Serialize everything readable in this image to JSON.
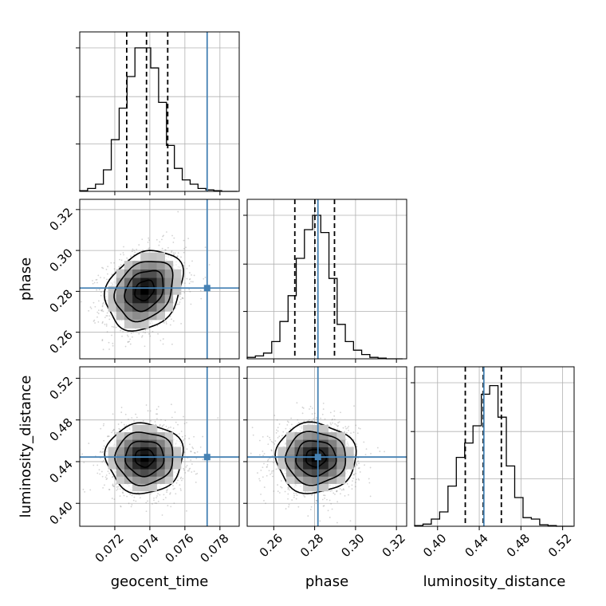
{
  "chart_data": {
    "type": "corner",
    "parameters": [
      "geocent_time",
      "phase",
      "luminosity_distance"
    ],
    "axis_labels": {
      "geocent_time": "geocent_time",
      "phase": "phase",
      "luminosity_distance": "luminosity_distance"
    },
    "ranges": {
      "geocent_time": [
        0.07,
        0.0791
      ],
      "phase": [
        0.247,
        0.325
      ],
      "luminosity_distance": [
        0.378,
        0.531
      ]
    },
    "ticks": {
      "geocent_time": [
        0.072,
        0.074,
        0.076,
        0.078
      ],
      "phase": [
        0.26,
        0.28,
        0.3,
        0.32
      ],
      "luminosity_distance": [
        0.4,
        0.44,
        0.48,
        0.52
      ]
    },
    "tick_labels": {
      "geocent_time": [
        "0.072",
        "0.074",
        "0.076",
        "0.078"
      ],
      "phase": [
        "0.26",
        "0.28",
        "0.30",
        "0.32"
      ],
      "luminosity_distance": [
        "0.40",
        "0.44",
        "0.48",
        "0.52"
      ]
    },
    "truths": {
      "geocent_time": 0.07727,
      "phase": 0.2816,
      "luminosity_distance": 0.4444
    },
    "posterior_medians": {
      "geocent_time": 0.07381,
      "phase": 0.2801,
      "luminosity_distance": 0.4438
    },
    "quantiles_16_84": {
      "geocent_time": [
        0.07268,
        0.07502
      ],
      "phase": [
        0.2703,
        0.2897
      ],
      "luminosity_distance": [
        0.4266,
        0.4612
      ]
    },
    "histograms": {
      "geocent_time": {
        "bin_edges": [
          0.07,
          0.07045,
          0.0709,
          0.07135,
          0.0718,
          0.07225,
          0.0727,
          0.07315,
          0.0736,
          0.07405,
          0.0745,
          0.07495,
          0.0754,
          0.07585,
          0.0763,
          0.07675,
          0.0772,
          0.07765,
          0.0781,
          0.07855,
          0.079
        ],
        "counts": [
          0.5,
          2,
          5,
          15,
          36,
          58,
          80,
          100,
          100,
          86,
          62,
          32,
          16,
          8,
          5,
          2,
          1,
          0.5,
          0,
          0
        ]
      },
      "phase": {
        "bin_edges": [
          0.247,
          0.251,
          0.255,
          0.259,
          0.263,
          0.267,
          0.271,
          0.275,
          0.279,
          0.283,
          0.287,
          0.291,
          0.295,
          0.299,
          0.303,
          0.307,
          0.311,
          0.315,
          0.319,
          0.323
        ],
        "counts": [
          1,
          2,
          4,
          12,
          26,
          44,
          70,
          90,
          100,
          88,
          56,
          24,
          12,
          6,
          3,
          1,
          0.5,
          0,
          0
        ]
      },
      "luminosity_distance": {
        "bin_edges": [
          0.378,
          0.386,
          0.394,
          0.402,
          0.41,
          0.418,
          0.426,
          0.434,
          0.442,
          0.45,
          0.458,
          0.466,
          0.474,
          0.482,
          0.49,
          0.498,
          0.506,
          0.514,
          0.522,
          0.53
        ],
        "counts": [
          0.5,
          1.5,
          5,
          10,
          28,
          48,
          58,
          70,
          92,
          98,
          76,
          42,
          20,
          6,
          5,
          1,
          0.5,
          0,
          0
        ]
      }
    },
    "joint_2d": [
      {
        "x": "geocent_time",
        "y": "phase",
        "mean": [
          0.0737,
          0.2805
        ],
        "sd": [
          0.0011,
          0.0098
        ],
        "correlation": 0.25,
        "contour_levels_sigma": [
          0.5,
          1.0,
          1.5,
          2.0
        ]
      },
      {
        "x": "geocent_time",
        "y": "luminosity_distance",
        "mean": [
          0.0737,
          0.4435
        ],
        "sd": [
          0.0011,
          0.0168
        ],
        "correlation": 0.0,
        "contour_levels_sigma": [
          0.5,
          1.0,
          1.5,
          2.0
        ]
      },
      {
        "x": "phase",
        "y": "luminosity_distance",
        "mean": [
          0.2805,
          0.4435
        ],
        "sd": [
          0.0098,
          0.0168
        ],
        "correlation": 0.0,
        "contour_levels_sigma": [
          0.5,
          1.0,
          1.5,
          2.0
        ]
      }
    ],
    "grid": true,
    "colors": {
      "truth": "#4682b4",
      "histogram": "#000000",
      "quantile": "#000000",
      "grid": "#b0b0b0",
      "scatter": "#808080"
    }
  }
}
